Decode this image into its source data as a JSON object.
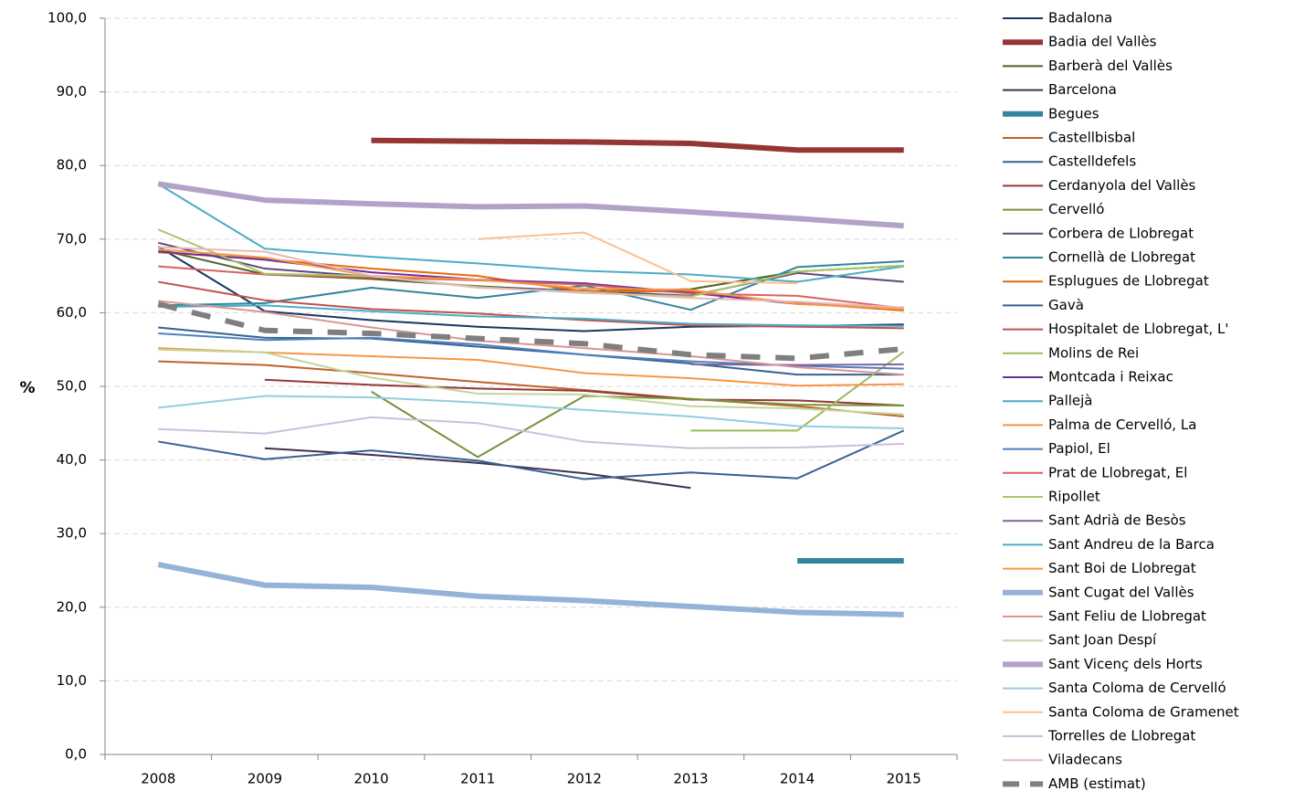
{
  "chart_data": {
    "type": "line",
    "y_label": "%",
    "categories": [
      "2008",
      "2009",
      "2010",
      "2011",
      "2012",
      "2013",
      "2014",
      "2015"
    ],
    "ylim": [
      0,
      100
    ],
    "yticks": [
      {
        "value": 0,
        "label": "0,0"
      },
      {
        "value": 10,
        "label": "10,0"
      },
      {
        "value": 20,
        "label": "20,0"
      },
      {
        "value": 30,
        "label": "30,0"
      },
      {
        "value": 40,
        "label": "40,0"
      },
      {
        "value": 50,
        "label": "50,0"
      },
      {
        "value": 60,
        "label": "60,0"
      },
      {
        "value": 70,
        "label": "70,0"
      },
      {
        "value": 80,
        "label": "80,0"
      },
      {
        "value": 90,
        "label": "90,0"
      },
      {
        "value": 100,
        "label": "100,0"
      }
    ],
    "grid": true,
    "series": [
      {
        "name": "Badalona",
        "color": "#17375e",
        "values": [
          69.0,
          60.2,
          59.0,
          58.1,
          57.5,
          58.1,
          58.2,
          58.4
        ]
      },
      {
        "name": "Badia del Vallès",
        "color": "#943634",
        "linewidth": 6,
        "values": [
          null,
          null,
          83.4,
          83.3,
          83.2,
          83.0,
          82.1,
          82.1
        ]
      },
      {
        "name": "Barberà del Vallès",
        "color": "#4f6228",
        "values": [
          68.6,
          65.2,
          64.6,
          63.6,
          62.9,
          63.2,
          65.6,
          66.4
        ]
      },
      {
        "name": "Barcelona",
        "color": "#403152",
        "values": [
          null,
          41.6,
          40.7,
          39.6,
          38.2,
          36.2,
          null,
          null
        ]
      },
      {
        "name": "Begues",
        "color": "#31859c",
        "linewidth": 6,
        "values": [
          null,
          null,
          null,
          null,
          null,
          null,
          26.3,
          26.3
        ]
      },
      {
        "name": "Castellbisbal",
        "color": "#c0612b",
        "values": [
          53.4,
          52.9,
          51.8,
          50.6,
          49.5,
          48.3,
          47.3,
          45.9
        ]
      },
      {
        "name": "Castelldefels",
        "color": "#376092",
        "values": [
          58.0,
          56.6,
          56.5,
          55.4,
          54.3,
          53.1,
          51.6,
          51.6
        ]
      },
      {
        "name": "Cerdanyola del Vallès",
        "color": "#953735",
        "values": [
          null,
          50.9,
          50.2,
          49.7,
          49.4,
          48.2,
          48.1,
          47.4
        ]
      },
      {
        "name": "Cervelló",
        "color": "#77933c",
        "values": [
          null,
          null,
          49.3,
          40.4,
          48.7,
          48.3,
          47.5,
          47.4
        ]
      },
      {
        "name": "Corbera de Llobregat",
        "color": "#5f497a",
        "values": [
          69.5,
          66.0,
          64.9,
          63.5,
          63.0,
          62.3,
          65.4,
          64.2
        ]
      },
      {
        "name": "Cornellà de Llobregat",
        "color": "#31859c",
        "values": [
          61.0,
          61.3,
          63.4,
          62.0,
          63.7,
          60.4,
          66.2,
          67.0
        ]
      },
      {
        "name": "Esplugues de Llobregat",
        "color": "#e46c0a",
        "values": [
          68.2,
          67.3,
          66.0,
          65.0,
          62.9,
          62.9,
          61.3,
          60.3
        ]
      },
      {
        "name": "Gavà",
        "color": "#366092",
        "values": [
          42.5,
          40.1,
          41.3,
          39.9,
          37.4,
          38.3,
          37.5,
          44.0
        ]
      },
      {
        "name": "Hospitalet de Llobregat, L'",
        "color": "#c0504d",
        "values": [
          64.2,
          61.7,
          60.5,
          59.9,
          59.0,
          58.3,
          58.1,
          57.9
        ]
      },
      {
        "name": "Molins de Rei",
        "color": "#9bbb59",
        "values": [
          null,
          null,
          null,
          null,
          null,
          44.0,
          44.0,
          54.7
        ]
      },
      {
        "name": "Montcada i Reixac",
        "color": "#7030a0",
        "values": [
          68.3,
          67.2,
          65.5,
          64.5,
          64.0,
          62.7,
          61.2,
          60.7
        ]
      },
      {
        "name": "Pallejà",
        "color": "#4bacc6",
        "values": [
          77.5,
          68.7,
          67.6,
          66.7,
          65.7,
          65.2,
          64.2,
          66.3
        ]
      },
      {
        "name": "Palma de Cervelló, La",
        "color": "#f79646",
        "values": [
          55.2,
          54.6,
          54.1,
          53.6,
          51.8,
          51.1,
          50.1,
          50.3
        ]
      },
      {
        "name": "Papiol, El",
        "color": "#4f81bd",
        "values": [
          57.2,
          56.3,
          56.6,
          55.7,
          54.3,
          53.4,
          52.8,
          52.4
        ]
      },
      {
        "name": "Prat de Llobregat, El",
        "color": "#d9625e",
        "values": [
          66.3,
          65.2,
          64.8,
          64.4,
          63.8,
          62.6,
          62.3,
          60.6
        ]
      },
      {
        "name": "Ripollet",
        "color": "#a9c66a",
        "values": [
          71.3,
          65.3,
          65.0,
          63.5,
          62.7,
          62.2,
          65.6,
          66.4
        ]
      },
      {
        "name": "Sant Adrià de Besòs",
        "color": "#8064a2",
        "values": [
          null,
          null,
          null,
          null,
          null,
          53.0,
          52.9,
          53.0
        ]
      },
      {
        "name": "Sant Andreu de la Barca",
        "color": "#4bacc6",
        "values": [
          60.8,
          61.0,
          60.2,
          59.5,
          59.2,
          58.5,
          58.3,
          58.2
        ]
      },
      {
        "name": "Sant Boi de Llobregat",
        "color": "#f79646",
        "values": [
          68.6,
          67.5,
          65.0,
          64.5,
          63.3,
          63.1,
          61.2,
          60.5
        ]
      },
      {
        "name": "Sant Cugat del Vallès",
        "color": "#95b3d7",
        "linewidth": 6,
        "values": [
          25.8,
          23.0,
          22.7,
          21.5,
          20.9,
          20.1,
          19.3,
          19.0
        ]
      },
      {
        "name": "Sant Feliu de Llobregat",
        "color": "#d99694",
        "values": [
          61.6,
          60.1,
          58.0,
          56.2,
          55.2,
          54.1,
          52.6,
          51.6
        ]
      },
      {
        "name": "Sant Joan Despí",
        "color": "#c3d69b",
        "values": [
          55.0,
          54.6,
          51.2,
          49.0,
          48.9,
          47.3,
          47.0,
          46.2
        ]
      },
      {
        "name": "Sant Vicenç dels Horts",
        "color": "#b3a2c7",
        "linewidth": 6,
        "values": [
          77.5,
          75.3,
          74.8,
          74.4,
          74.5,
          73.7,
          72.8,
          71.8
        ]
      },
      {
        "name": "Santa Coloma de Cervelló",
        "color": "#93cddd",
        "values": [
          47.1,
          48.7,
          48.5,
          47.8,
          46.8,
          45.9,
          44.6,
          44.3
        ]
      },
      {
        "name": "Santa Coloma de Gramenet",
        "color": "#fac090",
        "values": [
          null,
          null,
          null,
          70.0,
          70.9,
          64.3,
          64.0,
          null
        ]
      },
      {
        "name": "Torrelles de Llobregat",
        "color": "#ccc0da",
        "values": [
          44.2,
          43.6,
          45.8,
          45.0,
          42.5,
          41.6,
          41.7,
          42.2
        ]
      },
      {
        "name": "Viladecans",
        "color": "#e6b9b8",
        "values": [
          68.9,
          68.3,
          65.0,
          63.4,
          62.8,
          62.0,
          61.5,
          60.7
        ]
      },
      {
        "name": "AMB (estimat)",
        "color": "#7f7f7f",
        "linewidth": 6,
        "dash": true,
        "values": [
          61.2,
          57.6,
          57.2,
          56.5,
          55.8,
          54.3,
          53.8,
          55.1
        ]
      }
    ]
  }
}
